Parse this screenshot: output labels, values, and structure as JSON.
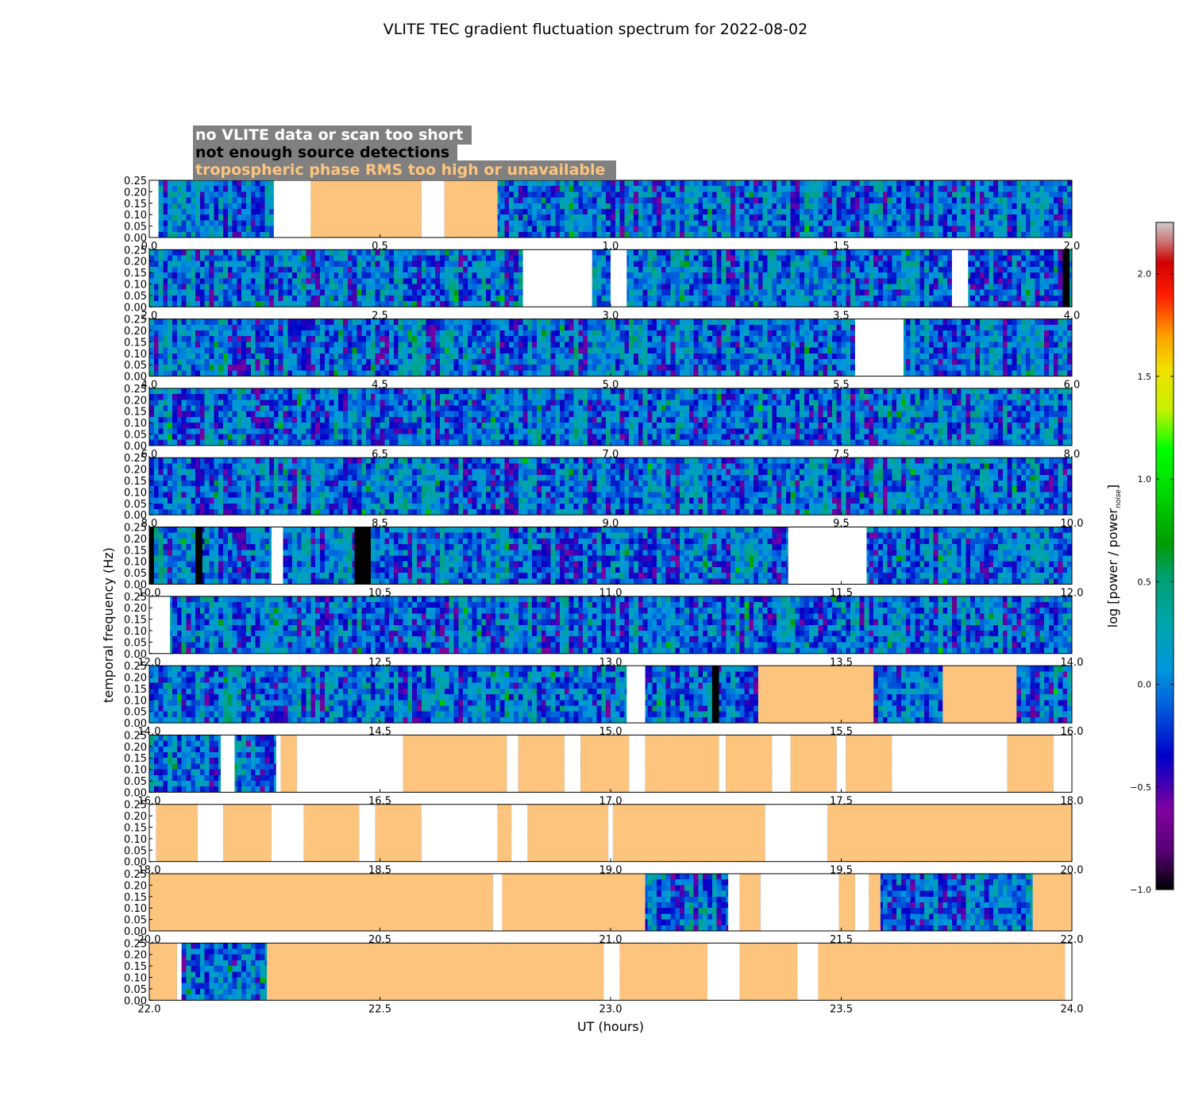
{
  "chart_data": {
    "type": "heatmap",
    "title": "VLITE TEC gradient fluctuation spectrum for 2022-08-02",
    "xlabel": "UT (hours)",
    "ylabel": "temporal frequency (Hz)",
    "colorbar": {
      "label": "log [power / power",
      "label_subscript": "noise",
      "label_close": "]",
      "range": [
        -1.0,
        2.25
      ],
      "ticks": [
        "−1.0",
        "−0.5",
        "0.0",
        "0.5",
        "1.0",
        "1.5",
        "2.0"
      ],
      "tick_values": [
        -1.0,
        -0.5,
        0.0,
        0.5,
        1.0,
        1.5,
        2.0
      ],
      "colormap": "nipy_spectral"
    },
    "ylim": [
      0,
      0.25
    ],
    "yticks": [
      "0.00",
      "0.05",
      "0.10",
      "0.15",
      "0.20",
      "0.25"
    ],
    "legend": {
      "placement": "top-left",
      "entries": [
        {
          "label": "no VLITE data or scan too short",
          "color": "#ffffff"
        },
        {
          "label": "not enough source detections",
          "color": "#000000"
        },
        {
          "label": "tropospheric phase RMS too high or unavailable",
          "color": "#fdc47e"
        }
      ],
      "background": "#808080"
    },
    "colors": {
      "no_data": "#ffffff",
      "not_enough": "#000000",
      "trop": "#fdc47e"
    },
    "panels": [
      {
        "xlim": [
          0,
          2
        ],
        "xticks": [
          "0.0",
          "0.5",
          "1.0",
          "1.5",
          "2.0"
        ],
        "masks": [
          {
            "type": "no_data",
            "x": [
              0.0,
              0.02
            ]
          },
          {
            "type": "no_data",
            "x": [
              0.27,
              0.35
            ]
          },
          {
            "type": "trop",
            "x": [
              0.35,
              0.59
            ]
          },
          {
            "type": "no_data",
            "x": [
              0.59,
              0.64
            ]
          },
          {
            "type": "trop",
            "x": [
              0.64,
              0.755
            ]
          }
        ]
      },
      {
        "xlim": [
          2,
          4
        ],
        "xticks": [
          "2.0",
          "2.5",
          "3.0",
          "3.5",
          "4.0"
        ],
        "masks": [
          {
            "type": "no_data",
            "x": [
              2.81,
              2.96
            ]
          },
          {
            "type": "no_data",
            "x": [
              3.0,
              3.035
            ]
          },
          {
            "type": "no_data",
            "x": [
              3.74,
              3.775
            ]
          },
          {
            "type": "not_enough",
            "x": [
              3.98,
              3.995
            ]
          }
        ]
      },
      {
        "xlim": [
          4,
          6
        ],
        "xticks": [
          "4.0",
          "4.5",
          "5.0",
          "5.5",
          "6.0"
        ],
        "masks": [
          {
            "type": "no_data",
            "x": [
              5.53,
              5.635
            ]
          }
        ]
      },
      {
        "xlim": [
          6,
          8
        ],
        "xticks": [
          "6.0",
          "6.5",
          "7.0",
          "7.5",
          "8.0"
        ],
        "masks": []
      },
      {
        "xlim": [
          8,
          10
        ],
        "xticks": [
          "8.0",
          "8.5",
          "9.0",
          "9.5",
          "10.0"
        ],
        "masks": []
      },
      {
        "xlim": [
          10,
          12
        ],
        "xticks": [
          "10.0",
          "10.5",
          "11.0",
          "11.5",
          "12.0"
        ],
        "masks": [
          {
            "type": "not_enough",
            "x": [
              10.0,
              10.01
            ]
          },
          {
            "type": "not_enough",
            "x": [
              10.1,
              10.115
            ]
          },
          {
            "type": "no_data",
            "x": [
              10.265,
              10.29
            ]
          },
          {
            "type": "not_enough",
            "x": [
              10.445,
              10.48
            ]
          },
          {
            "type": "no_data",
            "x": [
              11.385,
              11.555
            ]
          }
        ]
      },
      {
        "xlim": [
          12,
          14
        ],
        "xticks": [
          "12.0",
          "12.5",
          "13.0",
          "13.5",
          "14.0"
        ],
        "masks": [
          {
            "type": "no_data",
            "x": [
              12.0,
              12.045
            ]
          }
        ]
      },
      {
        "xlim": [
          14,
          16
        ],
        "xticks": [
          "14.0",
          "14.5",
          "15.0",
          "15.5",
          "16.0"
        ],
        "masks": [
          {
            "type": "no_data",
            "x": [
              15.035,
              15.075
            ]
          },
          {
            "type": "not_enough",
            "x": [
              15.22,
              15.235
            ]
          },
          {
            "type": "trop",
            "x": [
              15.32,
              15.57
            ]
          },
          {
            "type": "trop",
            "x": [
              15.72,
              15.88
            ]
          }
        ]
      },
      {
        "xlim": [
          16,
          18
        ],
        "xticks": [
          "16.0",
          "16.5",
          "17.0",
          "17.5",
          "18.0"
        ],
        "masks": [
          {
            "type": "no_data",
            "x": [
              16.155,
              16.185
            ]
          },
          {
            "type": "no_data",
            "x": [
              16.275,
              16.285
            ]
          },
          {
            "type": "trop",
            "x": [
              16.285,
              16.32
            ]
          },
          {
            "type": "no_data",
            "x": [
              16.32,
              16.55
            ]
          },
          {
            "type": "trop",
            "x": [
              16.55,
              16.775
            ]
          },
          {
            "type": "no_data",
            "x": [
              16.775,
              16.8
            ]
          },
          {
            "type": "trop",
            "x": [
              16.8,
              16.9
            ]
          },
          {
            "type": "no_data",
            "x": [
              16.9,
              16.935
            ]
          },
          {
            "type": "trop",
            "x": [
              16.935,
              17.04
            ]
          },
          {
            "type": "no_data",
            "x": [
              17.04,
              17.075
            ]
          },
          {
            "type": "trop",
            "x": [
              17.075,
              17.235
            ]
          },
          {
            "type": "no_data",
            "x": [
              17.235,
              17.25
            ]
          },
          {
            "type": "trop",
            "x": [
              17.25,
              17.35
            ]
          },
          {
            "type": "no_data",
            "x": [
              17.35,
              17.39
            ]
          },
          {
            "type": "trop",
            "x": [
              17.39,
              17.49
            ]
          },
          {
            "type": "no_data",
            "x": [
              17.49,
              17.51
            ]
          },
          {
            "type": "trop",
            "x": [
              17.51,
              17.61
            ]
          },
          {
            "type": "no_data",
            "x": [
              17.61,
              17.86
            ]
          },
          {
            "type": "trop",
            "x": [
              17.86,
              17.96
            ]
          },
          {
            "type": "no_data",
            "x": [
              17.96,
              18.0
            ]
          }
        ]
      },
      {
        "xlim": [
          18,
          20
        ],
        "xticks": [
          "18.0",
          "18.5",
          "19.0",
          "19.5",
          "20.0"
        ],
        "masks": [
          {
            "type": "no_data",
            "x": [
              18.0,
              18.015
            ]
          },
          {
            "type": "trop",
            "x": [
              18.015,
              18.105
            ]
          },
          {
            "type": "no_data",
            "x": [
              18.105,
              18.16
            ]
          },
          {
            "type": "trop",
            "x": [
              18.16,
              18.265
            ]
          },
          {
            "type": "no_data",
            "x": [
              18.265,
              18.335
            ]
          },
          {
            "type": "trop",
            "x": [
              18.335,
              18.455
            ]
          },
          {
            "type": "no_data",
            "x": [
              18.455,
              18.49
            ]
          },
          {
            "type": "trop",
            "x": [
              18.49,
              18.59
            ]
          },
          {
            "type": "no_data",
            "x": [
              18.59,
              18.755
            ]
          },
          {
            "type": "trop",
            "x": [
              18.755,
              18.785
            ]
          },
          {
            "type": "no_data",
            "x": [
              18.785,
              18.82
            ]
          },
          {
            "type": "trop",
            "x": [
              18.82,
              18.995
            ]
          },
          {
            "type": "no_data",
            "x": [
              18.995,
              19.005
            ]
          },
          {
            "type": "trop",
            "x": [
              19.005,
              19.335
            ]
          },
          {
            "type": "no_data",
            "x": [
              19.335,
              19.47
            ]
          },
          {
            "type": "trop",
            "x": [
              19.47,
              20.0
            ]
          }
        ]
      },
      {
        "xlim": [
          20,
          22
        ],
        "xticks": [
          "20.0",
          "20.5",
          "21.0",
          "21.5",
          "22.0"
        ],
        "masks": [
          {
            "type": "trop",
            "x": [
              20.0,
              20.745
            ]
          },
          {
            "type": "no_data",
            "x": [
              20.745,
              20.765
            ]
          },
          {
            "type": "trop",
            "x": [
              20.765,
              21.075
            ]
          },
          {
            "type": "no_data",
            "x": [
              21.255,
              21.28
            ]
          },
          {
            "type": "trop",
            "x": [
              21.28,
              21.325
            ]
          },
          {
            "type": "no_data",
            "x": [
              21.325,
              21.495
            ]
          },
          {
            "type": "trop",
            "x": [
              21.495,
              21.53
            ]
          },
          {
            "type": "no_data",
            "x": [
              21.53,
              21.56
            ]
          },
          {
            "type": "trop",
            "x": [
              21.56,
              21.585
            ]
          },
          {
            "type": "trop",
            "x": [
              21.915,
              22.0
            ]
          }
        ]
      },
      {
        "xlim": [
          22,
          24
        ],
        "xticks": [
          "22.0",
          "22.5",
          "23.0",
          "23.5",
          "24.0"
        ],
        "masks": [
          {
            "type": "trop",
            "x": [
              22.0,
              22.06
            ]
          },
          {
            "type": "no_data",
            "x": [
              22.06,
              22.07
            ]
          },
          {
            "type": "trop",
            "x": [
              22.255,
              22.985
            ]
          },
          {
            "type": "no_data",
            "x": [
              22.985,
              23.02
            ]
          },
          {
            "type": "trop",
            "x": [
              23.02,
              23.21
            ]
          },
          {
            "type": "no_data",
            "x": [
              23.21,
              23.28
            ]
          },
          {
            "type": "trop",
            "x": [
              23.28,
              23.405
            ]
          },
          {
            "type": "no_data",
            "x": [
              23.405,
              23.45
            ]
          },
          {
            "type": "trop",
            "x": [
              23.45,
              23.985
            ]
          },
          {
            "type": "no_data",
            "x": [
              23.985,
              24.0
            ]
          }
        ]
      }
    ]
  }
}
